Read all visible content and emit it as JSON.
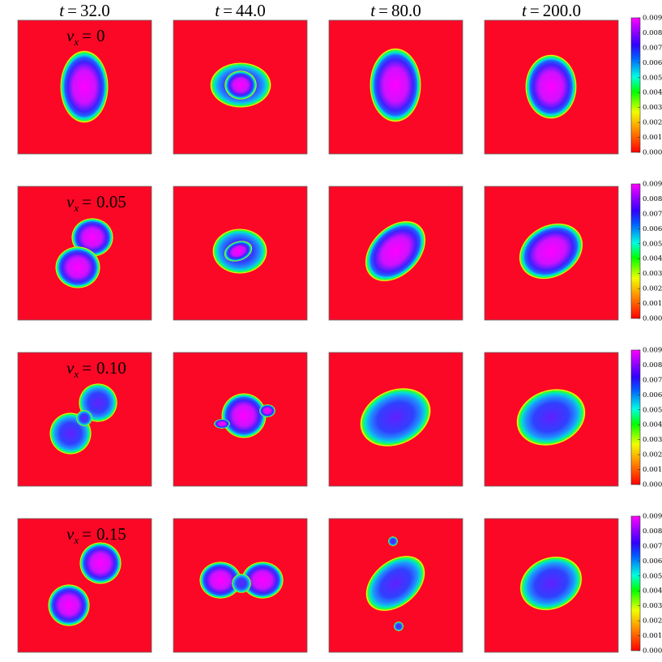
{
  "columns": [
    {
      "variable": "t",
      "equals": "=",
      "value": "32.0"
    },
    {
      "variable": "t",
      "equals": "=",
      "value": "44.0"
    },
    {
      "variable": "t",
      "equals": "=",
      "value": "80.0"
    },
    {
      "variable": "t",
      "equals": "=",
      "value": "200.0"
    }
  ],
  "rows": [
    {
      "variable": "v",
      "subscript": "x",
      "equals": "=",
      "value": "0"
    },
    {
      "variable": "v",
      "subscript": "x",
      "equals": "=",
      "value": "0.05"
    },
    {
      "variable": "v",
      "subscript": "x",
      "equals": "=",
      "value": "0.10"
    },
    {
      "variable": "v",
      "subscript": "x",
      "equals": "=",
      "value": "0.15"
    }
  ],
  "colorbar": {
    "ticks": [
      {
        "value": 0,
        "label": "0.000"
      },
      {
        "value": 0.001,
        "label": "0.001"
      },
      {
        "value": 0.002,
        "label": "0.002"
      },
      {
        "value": 0.003,
        "label": "0.003"
      },
      {
        "value": 0.004,
        "label": "0.004"
      },
      {
        "value": 0.005,
        "label": "0.005"
      },
      {
        "value": 0.006,
        "label": "0.006"
      },
      {
        "value": 0.007,
        "label": "0.007"
      },
      {
        "value": 0.008,
        "label": "0.008"
      },
      {
        "value": 0.009,
        "label": "0.009"
      }
    ]
  }
}
